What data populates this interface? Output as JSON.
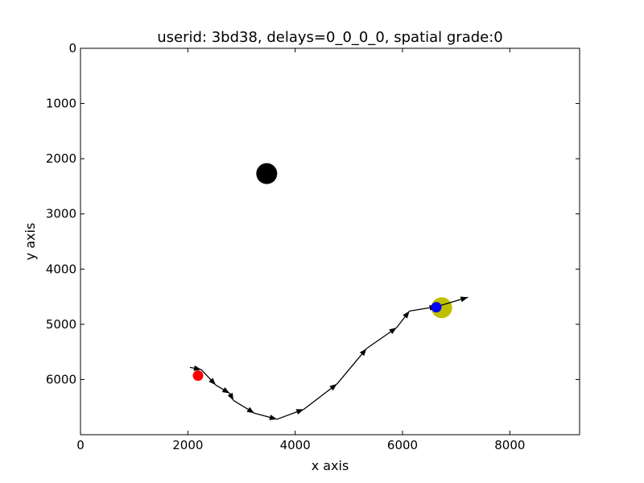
{
  "chart_data": {
    "type": "scatter",
    "title": "userid: 3bd38, delays=0_0_0_0, spatial grade:0",
    "xlabel": "x axis",
    "ylabel": "y axis",
    "xlim": [
      0,
      9300
    ],
    "ylim": [
      0,
      7000
    ],
    "y_inverted": true,
    "grid": false,
    "x_ticks": [
      0,
      2000,
      4000,
      6000,
      8000
    ],
    "x_tick_labels": [
      "0",
      "2000",
      "4000",
      "6000",
      "8000"
    ],
    "y_ticks": [
      0,
      1000,
      2000,
      3000,
      4000,
      5000,
      6000
    ],
    "y_tick_labels": [
      "0",
      "1000",
      "2000",
      "3000",
      "4000",
      "5000",
      "6000"
    ],
    "trajectory": {
      "color": "#000000",
      "points": [
        [
          2040,
          5780
        ],
        [
          2250,
          5820
        ],
        [
          2520,
          6100
        ],
        [
          2780,
          6250
        ],
        [
          2850,
          6380
        ],
        [
          3240,
          6610
        ],
        [
          3660,
          6720
        ],
        [
          4160,
          6540
        ],
        [
          4780,
          6080
        ],
        [
          5330,
          5440
        ],
        [
          5890,
          5060
        ],
        [
          6130,
          4760
        ],
        [
          6640,
          4680
        ],
        [
          7220,
          4510
        ]
      ]
    },
    "markers": [
      {
        "name": "black-target",
        "x": 3470,
        "y": 2270,
        "size": "large",
        "color": "#000000"
      },
      {
        "name": "yellow-target",
        "x": 6730,
        "y": 4700,
        "size": "large",
        "color": "#bfbf00"
      },
      {
        "name": "red-start",
        "x": 2190,
        "y": 5930,
        "size": "small",
        "color": "#ff0000"
      },
      {
        "name": "blue-end",
        "x": 6630,
        "y": 4690,
        "size": "small",
        "color": "#0000ff"
      }
    ]
  }
}
